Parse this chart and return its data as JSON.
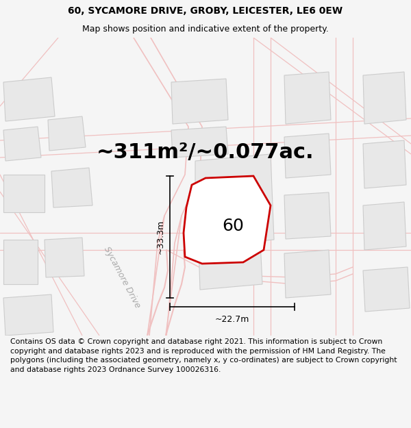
{
  "title_line1": "60, SYCAMORE DRIVE, GROBY, LEICESTER, LE6 0EW",
  "title_line2": "Map shows position and indicative extent of the property.",
  "area_text": "~311m²/~0.077ac.",
  "label_60": "60",
  "dim_vertical": "~33.3m",
  "dim_horizontal": "~22.7m",
  "street_label": "Sycamore Drive",
  "footer_text": "Contains OS data © Crown copyright and database right 2021. This information is subject to Crown copyright and database rights 2023 and is reproduced with the permission of HM Land Registry. The polygons (including the associated geometry, namely x, y co-ordinates) are subject to Crown copyright and database rights 2023 Ordnance Survey 100026316.",
  "bg_color": "#f5f5f5",
  "map_bg": "#ffffff",
  "highlight_polygon_color": "#cc0000",
  "road_color": "#f0c0c0",
  "building_fill": "#e8e8e8",
  "building_edge": "#cccccc",
  "title_fontsize": 10,
  "subtitle_fontsize": 9,
  "area_fontsize": 22,
  "label_fontsize": 18,
  "dim_fontsize": 9,
  "footer_fontsize": 7.8,
  "street_fontsize": 9
}
